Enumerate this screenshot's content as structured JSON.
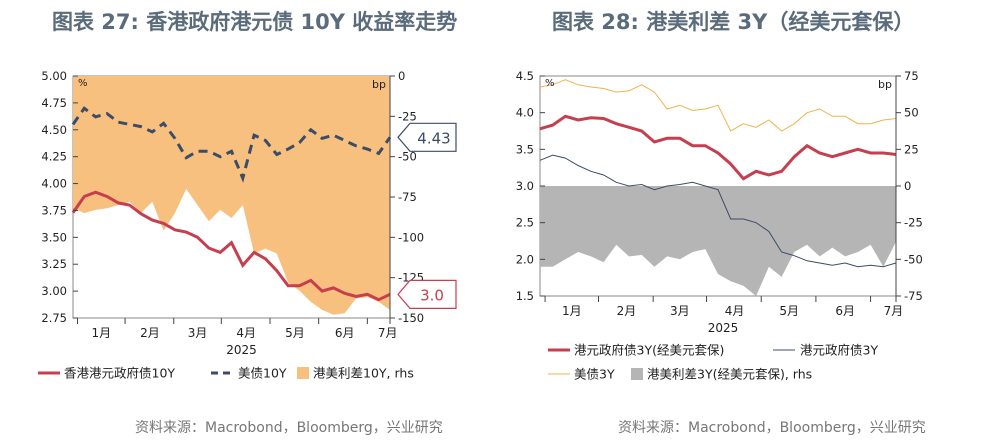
{
  "left": {
    "title": "图表 27: 香港政府港元债 10Y 收益率走势",
    "source": "资料来源：Macrobond，Bloomberg，兴业研究",
    "left_unit": "%",
    "right_unit": "bp",
    "year_label": "2025",
    "callout_us": "4.43",
    "callout_hk": "3.0",
    "legend": [
      "香港港元政府债10Y",
      "美债10Y",
      "港美利差10Y, rhs"
    ],
    "colors": {
      "hk": "#c73e4e",
      "us": "#3b4c68",
      "spread": "#f8c07f"
    }
  },
  "right": {
    "title": "图表 28: 港美利差 3Y（经美元套保）",
    "source": "资料来源：Macrobond，Bloomberg，兴业研究",
    "left_unit": "%",
    "right_unit": "bp",
    "year_label": "2025",
    "legend": [
      "港元政府债3Y(经美元套保)",
      "港元政府债3Y",
      "美债3Y",
      "港美利差3Y(经美元套保), rhs"
    ],
    "colors": {
      "hk_hedged": "#c73e4e",
      "hk": "#3b4c68",
      "us": "#f0b34a",
      "spread": "#b5b5b5"
    }
  },
  "chart_data": [
    {
      "type": "line",
      "title": "图表 27: 香港政府港元债 10Y 收益率走势",
      "x": [
        "12/20",
        "12/27",
        "01/03",
        "01/10",
        "01/17",
        "01/24",
        "01/31",
        "02/07",
        "02/14",
        "02/21",
        "02/28",
        "03/07",
        "03/14",
        "03/21",
        "03/28",
        "04/04",
        "04/11",
        "04/18",
        "04/25",
        "05/02",
        "05/09",
        "05/16",
        "05/23",
        "05/30",
        "06/06",
        "06/13",
        "06/20",
        "06/27",
        "07/04"
      ],
      "xticks": [
        "1月",
        "2月",
        "3月",
        "4月",
        "5月",
        "6月",
        "7月"
      ],
      "ylim": [
        2.75,
        5.0
      ],
      "yticks": [
        2.75,
        3.0,
        3.25,
        3.5,
        3.75,
        4.0,
        4.25,
        4.5,
        4.75,
        5.0
      ],
      "y2lim": [
        -150,
        0
      ],
      "y2ticks": [
        0,
        -25,
        -50,
        -75,
        -100,
        -125,
        -150
      ],
      "series": [
        {
          "name": "香港港元政府债10Y",
          "axis": "left",
          "values": [
            3.73,
            3.88,
            3.92,
            3.88,
            3.82,
            3.8,
            3.72,
            3.66,
            3.63,
            3.57,
            3.55,
            3.5,
            3.4,
            3.36,
            3.45,
            3.24,
            3.36,
            3.3,
            3.19,
            3.05,
            3.05,
            3.1,
            3.0,
            3.03,
            2.98,
            2.95,
            2.97,
            2.92,
            2.97
          ]
        },
        {
          "name": "美债10Y",
          "axis": "left",
          "values": [
            4.55,
            4.7,
            4.62,
            4.65,
            4.57,
            4.55,
            4.53,
            4.48,
            4.56,
            4.42,
            4.24,
            4.3,
            4.3,
            4.25,
            4.3,
            4.05,
            4.45,
            4.4,
            4.27,
            4.32,
            4.38,
            4.5,
            4.42,
            4.45,
            4.4,
            4.35,
            4.32,
            4.28,
            4.43
          ]
        },
        {
          "name": "港美利差10Y, rhs",
          "axis": "right",
          "values": [
            -82,
            -85,
            -83,
            -82,
            -80,
            -78,
            -85,
            -78,
            -96,
            -85,
            -70,
            -80,
            -90,
            -83,
            -88,
            -80,
            -110,
            -107,
            -110,
            -128,
            -133,
            -140,
            -145,
            -148,
            -147,
            -138,
            -137,
            -140,
            -145
          ]
        }
      ]
    },
    {
      "type": "line",
      "title": "图表 28: 港美利差 3Y（经美元套保）",
      "x": [
        "12/20",
        "12/27",
        "01/03",
        "01/10",
        "01/17",
        "01/24",
        "01/31",
        "02/07",
        "02/14",
        "02/21",
        "02/28",
        "03/07",
        "03/14",
        "03/21",
        "03/28",
        "04/04",
        "04/11",
        "04/18",
        "04/25",
        "05/02",
        "05/09",
        "05/16",
        "05/23",
        "05/30",
        "06/06",
        "06/13",
        "06/20",
        "06/27",
        "07/04"
      ],
      "xticks": [
        "1月",
        "2月",
        "3月",
        "4月",
        "5月",
        "6月",
        "7月"
      ],
      "ylim": [
        1.5,
        4.5
      ],
      "yticks": [
        1.5,
        2.0,
        2.5,
        3.0,
        3.5,
        4.0,
        4.5
      ],
      "y2lim": [
        -75,
        75
      ],
      "y2ticks": [
        75,
        50,
        25,
        0,
        -25,
        -50,
        -75
      ],
      "series": [
        {
          "name": "港元政府债3Y(经美元套保)",
          "axis": "left",
          "values": [
            3.78,
            3.83,
            3.95,
            3.9,
            3.93,
            3.92,
            3.85,
            3.8,
            3.75,
            3.6,
            3.65,
            3.65,
            3.55,
            3.55,
            3.45,
            3.3,
            3.1,
            3.2,
            3.15,
            3.2,
            3.4,
            3.55,
            3.45,
            3.4,
            3.45,
            3.5,
            3.45,
            3.45,
            3.43
          ]
        },
        {
          "name": "港元政府债3Y",
          "axis": "left",
          "values": [
            3.35,
            3.42,
            3.38,
            3.28,
            3.2,
            3.15,
            3.05,
            3.0,
            3.02,
            2.95,
            3.0,
            3.02,
            3.05,
            3.0,
            2.95,
            2.55,
            2.55,
            2.5,
            2.38,
            2.1,
            2.05,
            1.98,
            1.95,
            1.92,
            1.95,
            1.9,
            1.92,
            1.9,
            1.95
          ]
        },
        {
          "name": "美债3Y",
          "axis": "left",
          "values": [
            4.35,
            4.38,
            4.45,
            4.38,
            4.35,
            4.33,
            4.28,
            4.3,
            4.38,
            4.28,
            4.05,
            4.1,
            4.03,
            4.05,
            4.1,
            3.75,
            3.85,
            3.8,
            3.9,
            3.75,
            3.85,
            4.0,
            4.05,
            3.95,
            3.95,
            3.85,
            3.85,
            3.9,
            3.92
          ]
        },
        {
          "name": "港美利差3Y(经美元套保), rhs",
          "axis": "right",
          "values": [
            -55,
            -55,
            -50,
            -45,
            -48,
            -52,
            -40,
            -48,
            -47,
            -55,
            -48,
            -50,
            -45,
            -43,
            -60,
            -65,
            -68,
            -75,
            -55,
            -62,
            -45,
            -40,
            -48,
            -42,
            -48,
            -45,
            -40,
            -55,
            -38
          ]
        }
      ]
    }
  ]
}
